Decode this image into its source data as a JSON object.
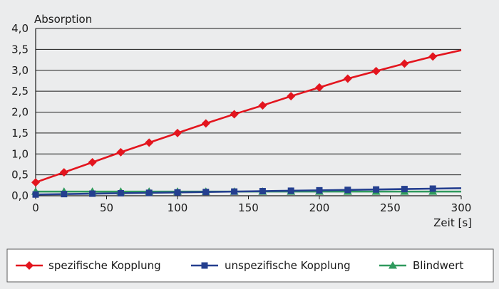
{
  "chart_data": {
    "type": "line",
    "ylabel": "Absorption",
    "xlabel": "Zeit [s]",
    "xlim": [
      0,
      300
    ],
    "ylim": [
      0,
      4
    ],
    "x_ticks": [
      "0",
      "50",
      "100",
      "150",
      "200",
      "250",
      "300"
    ],
    "y_ticks": [
      "0,0",
      "0,5",
      "1,0",
      "1,5",
      "2,0",
      "2,5",
      "3,0",
      "3,5",
      "4,0"
    ],
    "grid": "horizontal",
    "legend_position": "bottom",
    "series": [
      {
        "name": "spezifische Kopplung",
        "color": "#e3151e",
        "marker": "diamond",
        "x": [
          0,
          20,
          40,
          60,
          80,
          100,
          120,
          140,
          160,
          180,
          200,
          220,
          240,
          260,
          280,
          300
        ],
        "y": [
          0.32,
          0.56,
          0.8,
          1.04,
          1.27,
          1.5,
          1.73,
          1.95,
          2.16,
          2.38,
          2.59,
          2.8,
          2.98,
          3.16,
          3.33,
          3.48
        ],
        "marker_x": [
          0,
          20,
          40,
          60,
          80,
          100,
          120,
          140,
          160,
          180,
          200,
          220,
          240,
          260,
          280
        ]
      },
      {
        "name": "unspezifische Kopplung",
        "color": "#243f8f",
        "marker": "square",
        "x": [
          0,
          20,
          40,
          60,
          80,
          100,
          120,
          140,
          160,
          180,
          200,
          220,
          240,
          260,
          280,
          300
        ],
        "y": [
          0.03,
          0.04,
          0.05,
          0.06,
          0.07,
          0.08,
          0.09,
          0.1,
          0.11,
          0.12,
          0.13,
          0.14,
          0.15,
          0.16,
          0.17,
          0.18
        ],
        "marker_x": [
          0,
          20,
          40,
          60,
          80,
          100,
          120,
          140,
          160,
          180,
          200,
          220,
          240,
          260,
          280
        ]
      },
      {
        "name": "Blindwert",
        "color": "#2f9a5d",
        "marker": "triangle",
        "x": [
          0,
          20,
          40,
          60,
          80,
          100,
          120,
          140,
          160,
          180,
          200,
          220,
          240,
          260,
          280,
          300
        ],
        "y": [
          0.1,
          0.1,
          0.1,
          0.1,
          0.1,
          0.1,
          0.1,
          0.1,
          0.1,
          0.1,
          0.1,
          0.1,
          0.1,
          0.1,
          0.1,
          0.1
        ],
        "marker_x": [
          0,
          20,
          40,
          60,
          80,
          100,
          120,
          140,
          160,
          180,
          200,
          220,
          240,
          260,
          280
        ]
      }
    ]
  }
}
